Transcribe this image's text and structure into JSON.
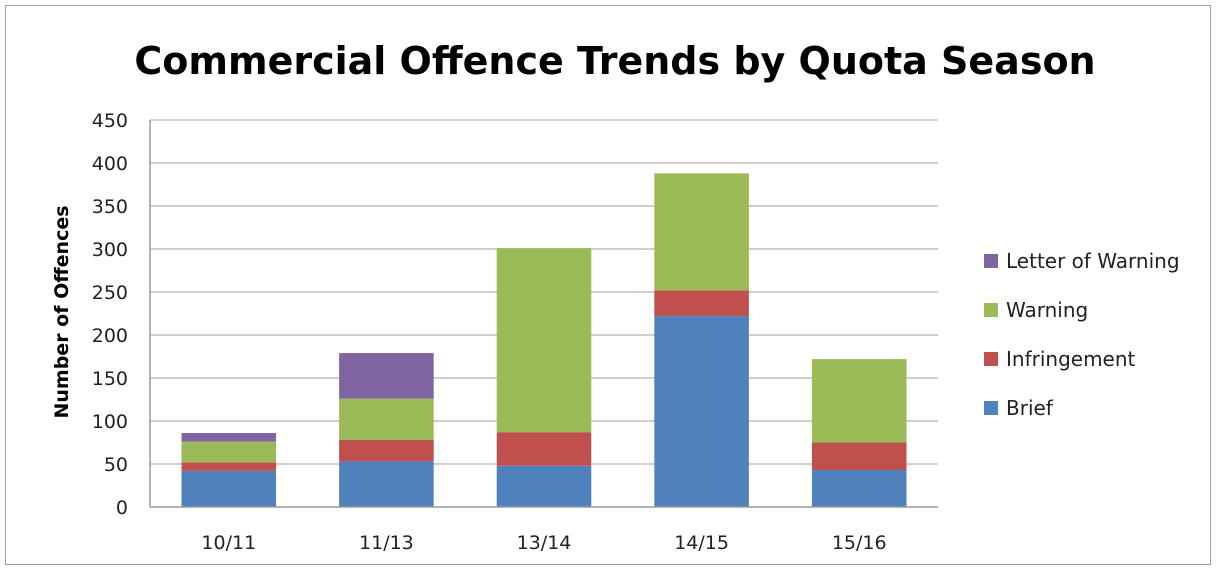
{
  "chart_data": {
    "type": "bar",
    "stacked": true,
    "title": "Commercial Offence Trends by Quota Season",
    "ylabel": "Number of Offences",
    "xlabel": "",
    "categories": [
      "10/11",
      "11/13",
      "13/14",
      "14/15",
      "15/16"
    ],
    "ylim": [
      0,
      450
    ],
    "yticks": [
      0,
      50,
      100,
      150,
      200,
      250,
      300,
      350,
      400,
      450
    ],
    "grid": "horizontal",
    "legend_position": "right",
    "series": [
      {
        "name": "Brief",
        "color": "#4f81bd",
        "values": [
          42,
          53,
          48,
          222,
          43
        ]
      },
      {
        "name": "Infringement",
        "color": "#c0504d",
        "values": [
          10,
          25,
          39,
          30,
          32
        ]
      },
      {
        "name": "Warning",
        "color": "#9bbb59",
        "values": [
          24,
          48,
          214,
          136,
          97
        ]
      },
      {
        "name": "Letter of Warning",
        "color": "#8064a2",
        "values": [
          10,
          53,
          0,
          0,
          0
        ]
      }
    ],
    "legend_order": [
      "Letter of Warning",
      "Warning",
      "Infringement",
      "Brief"
    ]
  }
}
